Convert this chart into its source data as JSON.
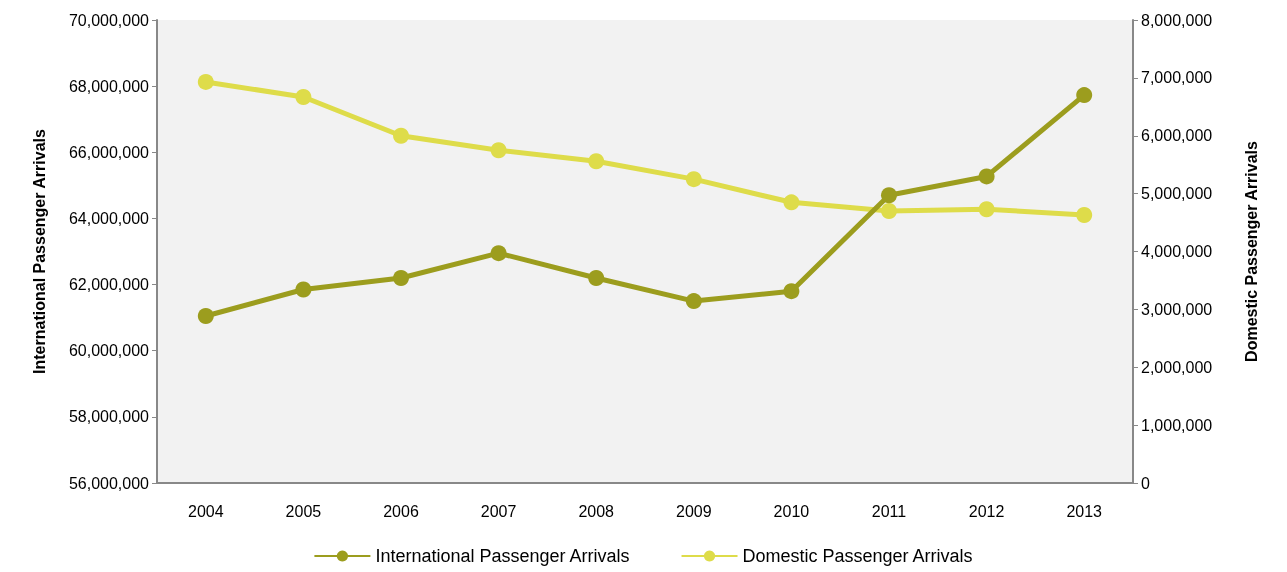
{
  "chart_data": {
    "type": "line",
    "ylabel": "International Passenger Arrivals",
    "y2label": "Domestic Passenger Arrivals",
    "categories": [
      "2004",
      "2005",
      "2006",
      "2007",
      "2008",
      "2009",
      "2010",
      "2011",
      "2012",
      "2013"
    ],
    "series": [
      {
        "name": "International Passenger Arrivals",
        "color": "#9c9d1e",
        "values": [
          61050000,
          61850000,
          62200000,
          62950000,
          62200000,
          61500000,
          61800000,
          64700000,
          65270000,
          67730000
        ]
      },
      {
        "name": "Domestic Passenger Arrivals",
        "color": "#dedc4a",
        "axis": "y2",
        "values": [
          6930000,
          6670000,
          6000000,
          5750000,
          5560000,
          5250000,
          4850000,
          4700000,
          4730000,
          4630000
        ]
      }
    ],
    "ylim": [
      56000000,
      70000000
    ],
    "yticks": [
      {
        "value": 56000000,
        "label": "56,000,000"
      },
      {
        "value": 58000000,
        "label": "58,000,000"
      },
      {
        "value": 60000000,
        "label": "60,000,000"
      },
      {
        "value": 62000000,
        "label": "62,000,000"
      },
      {
        "value": 64000000,
        "label": "64,000,000"
      },
      {
        "value": 66000000,
        "label": "66,000,000"
      },
      {
        "value": 68000000,
        "label": "68,000,000"
      },
      {
        "value": 70000000,
        "label": "70,000,000"
      }
    ],
    "y2lim": [
      0,
      8000000
    ],
    "y2ticks": [
      0,
      {
        "value": 1000000,
        "label": "1,000,000"
      },
      {
        "value": 2000000,
        "label": "2,000,000"
      },
      {
        "value": 3000000,
        "label": "3,000,000"
      },
      {
        "value": 4000000,
        "label": "4,000,000"
      },
      {
        "value": 5000000,
        "label": "5,000,000"
      },
      {
        "value": 6000000,
        "label": "6,000,000"
      },
      {
        "value": 7000000,
        "label": "7,000,000"
      },
      {
        "value": 8000000,
        "label": "8,000,000"
      }
    ],
    "grid": false,
    "legend": "bottom",
    "marker": "circle",
    "line_style": "solid"
  }
}
